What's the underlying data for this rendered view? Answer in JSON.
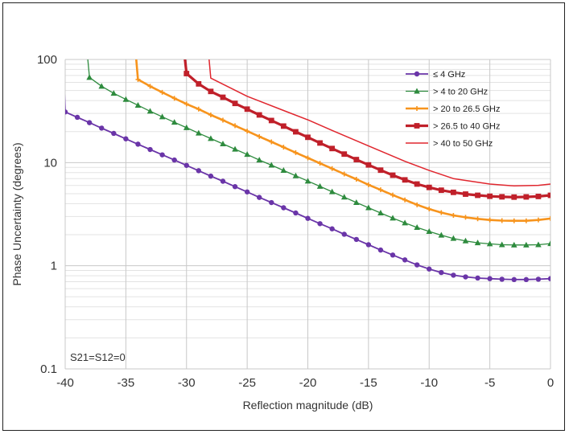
{
  "chart_data": {
    "type": "line",
    "title": "",
    "xlabel": "Reflection magnitude (dB)",
    "ylabel": "Phase Uncertainty (degrees)",
    "xlim": [
      -40,
      0
    ],
    "ylim": [
      0.1,
      100
    ],
    "yscale": "log",
    "grid": true,
    "legend_position": "top-right",
    "x_ticks": [
      "-40",
      "-35",
      "-30",
      "-25",
      "-20",
      "-15",
      "-10",
      "-5",
      "0"
    ],
    "y_ticks": [
      "0.1",
      "1",
      "10",
      "100"
    ],
    "annotation": "S21=S12=0",
    "series": [
      {
        "name": "≤ 4 GHz",
        "color": "#6a35a8",
        "marker": "circle",
        "x": [
          -40,
          -39,
          -38,
          -37,
          -36,
          -35,
          -34,
          -33,
          -32,
          -31,
          -30,
          -29,
          -28,
          -27,
          -26,
          -25,
          -24,
          -23,
          -22,
          -21,
          -20,
          -19,
          -18,
          -17,
          -16,
          -15,
          -14,
          -13,
          -12,
          -11,
          -10,
          -9,
          -8,
          -7,
          -6,
          -5,
          -4,
          -3,
          -2,
          -1,
          0
        ],
        "values": [
          31,
          27.5,
          24.4,
          21.6,
          19.2,
          17,
          15.1,
          13.4,
          11.9,
          10.6,
          9.4,
          8.35,
          7.4,
          6.6,
          5.85,
          5.2,
          4.6,
          4.1,
          3.65,
          3.25,
          2.88,
          2.56,
          2.28,
          2.02,
          1.8,
          1.6,
          1.42,
          1.27,
          1.14,
          1.02,
          0.93,
          0.86,
          0.81,
          0.78,
          0.76,
          0.75,
          0.74,
          0.735,
          0.735,
          0.74,
          0.75
        ]
      },
      {
        "name": "> 4 to 20 GHz",
        "color": "#2e8b3e",
        "marker": "triangle",
        "x": [
          -38,
          -37,
          -36,
          -35,
          -34,
          -33,
          -32,
          -31,
          -30,
          -29,
          -28,
          -27,
          -26,
          -25,
          -24,
          -23,
          -22,
          -21,
          -20,
          -19,
          -18,
          -17,
          -16,
          -15,
          -14,
          -13,
          -12,
          -11,
          -10,
          -9,
          -8,
          -7,
          -6,
          -5,
          -4,
          -3,
          -2,
          -1,
          0
        ],
        "values": [
          67,
          55,
          47,
          41,
          36,
          31.5,
          27.8,
          24.6,
          21.8,
          19.3,
          17.1,
          15.2,
          13.5,
          12,
          10.6,
          9.45,
          8.4,
          7.45,
          6.62,
          5.88,
          5.22,
          4.63,
          4.1,
          3.65,
          3.25,
          2.9,
          2.6,
          2.35,
          2.15,
          1.98,
          1.84,
          1.74,
          1.67,
          1.63,
          1.6,
          1.59,
          1.59,
          1.6,
          1.64
        ]
      },
      {
        "name": "> 20 to 26.5 GHz",
        "color": "#f7941d",
        "marker": "plus",
        "x": [
          -34,
          -33,
          -32,
          -31,
          -30,
          -29,
          -28,
          -27,
          -26,
          -25,
          -24,
          -23,
          -22,
          -21,
          -20,
          -19,
          -18,
          -17,
          -16,
          -15,
          -14,
          -13,
          -12,
          -11,
          -10,
          -9,
          -8,
          -7,
          -6,
          -5,
          -4,
          -3,
          -2,
          -1,
          0
        ],
        "values": [
          64,
          55,
          48,
          42,
          37,
          33,
          29,
          25.8,
          22.8,
          20.2,
          17.9,
          15.9,
          14.1,
          12.5,
          11.1,
          9.85,
          8.75,
          7.75,
          6.9,
          6.1,
          5.45,
          4.85,
          4.35,
          3.9,
          3.55,
          3.28,
          3.08,
          2.95,
          2.85,
          2.78,
          2.74,
          2.73,
          2.73,
          2.78,
          2.87
        ]
      },
      {
        "name": "> 26.5 to 40 GHz",
        "color": "#c0202a",
        "marker": "square",
        "x": [
          -30,
          -29,
          -28,
          -27,
          -26,
          -25,
          -24,
          -23,
          -22,
          -21,
          -20,
          -19,
          -18,
          -17,
          -16,
          -15,
          -14,
          -13,
          -12,
          -11,
          -10,
          -9,
          -8,
          -7,
          -6,
          -5,
          -4,
          -3,
          -2,
          -1,
          0
        ],
        "values": [
          73,
          58,
          49,
          43,
          37.5,
          33,
          29,
          25.6,
          22.6,
          19.9,
          17.6,
          15.5,
          13.7,
          12.1,
          10.7,
          9.5,
          8.45,
          7.55,
          6.8,
          6.2,
          5.75,
          5.4,
          5.15,
          4.95,
          4.82,
          4.72,
          4.66,
          4.63,
          4.65,
          4.7,
          4.82
        ]
      },
      {
        "name": "> 40 to 50 GHz",
        "color": "#e0262e",
        "marker": "none",
        "x": [
          -28,
          -25,
          -22,
          -20,
          -18,
          -15,
          -12,
          -10,
          -8,
          -5,
          -3,
          -1,
          0
        ],
        "values": [
          66,
          44,
          32,
          26,
          20.5,
          14.5,
          10.3,
          8.4,
          7,
          6.2,
          5.95,
          6.02,
          6.2
        ]
      }
    ]
  }
}
